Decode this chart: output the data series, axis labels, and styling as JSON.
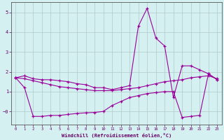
{
  "xlabel": "Windchill (Refroidissement éolien,°C)",
  "line_top": [
    1.7,
    1.8,
    1.65,
    1.6,
    1.6,
    1.55,
    1.5,
    1.4,
    1.35,
    1.2,
    1.2,
    1.1,
    1.2,
    1.3,
    4.3,
    5.2,
    3.7,
    3.3,
    0.7,
    2.3,
    2.3,
    2.1,
    1.9,
    1.6
  ],
  "line_mid": [
    1.7,
    1.65,
    1.55,
    1.45,
    1.35,
    1.25,
    1.2,
    1.15,
    1.1,
    1.05,
    1.05,
    1.05,
    1.1,
    1.15,
    1.2,
    1.3,
    1.4,
    1.5,
    1.55,
    1.6,
    1.7,
    1.75,
    1.8,
    1.65
  ],
  "line_bot": [
    1.7,
    1.2,
    -0.25,
    -0.25,
    -0.2,
    -0.2,
    -0.15,
    -0.1,
    -0.07,
    -0.05,
    0.0,
    0.3,
    0.5,
    0.7,
    0.8,
    0.9,
    0.95,
    1.0,
    1.0,
    -0.3,
    -0.25,
    -0.2,
    1.9,
    1.6
  ],
  "ylim": [
    -0.65,
    5.5
  ],
  "xlim": [
    -0.5,
    23.5
  ],
  "line_color": "#990099",
  "bg_color": "#d5f0f0",
  "grid_color": "#b0c8c8",
  "axis_color": "#660066",
  "spine_color": "#555555"
}
